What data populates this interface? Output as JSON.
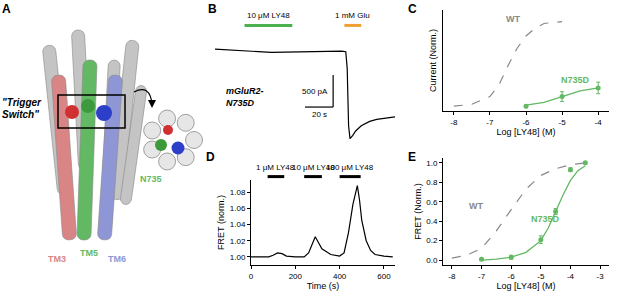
{
  "panel_a": {
    "panel_label": "A",
    "title_lines": [
      "\"Trigger",
      "Switch\""
    ],
    "helices": [
      {
        "name": "TM3",
        "color": "#d98585"
      },
      {
        "name": "TM5",
        "color": "#63b863"
      },
      {
        "name": "TM6",
        "color": "#8f96d6"
      }
    ],
    "residue": {
      "name": "N735",
      "color": "#63b863"
    }
  },
  "chart_data": [
    {
      "panel_label": "B",
      "type": "line",
      "tick_labels": false,
      "xlim": [
        0,
        128
      ],
      "ylim": [
        -1500,
        300
      ],
      "label_lines": [
        "mGluR2-",
        "N735D"
      ],
      "stimuli": [
        {
          "label": "10 μM LY48",
          "start": 21,
          "end": 55,
          "color": "#4caf50"
        },
        {
          "label": "1 mM Glu",
          "start": 92,
          "end": 104,
          "color": "#f0a030"
        }
      ],
      "scale_bars": {
        "x": 20,
        "y": 500,
        "x_label": "20 s",
        "y_label": "500 pA"
      },
      "series": [
        {
          "color": "#000000",
          "x": [
            0,
            10,
            20,
            30,
            40,
            50,
            60,
            70,
            80,
            90,
            93,
            94,
            95,
            96,
            98,
            100,
            104,
            110,
            115,
            120,
            128
          ],
          "values": [
            0,
            -10,
            -20,
            -40,
            -50,
            -45,
            -40,
            -35,
            -30,
            -30,
            -40,
            -300,
            -1200,
            -1400,
            -1350,
            -1280,
            -1200,
            -1130,
            -1100,
            -1080,
            -1060
          ]
        }
      ]
    },
    {
      "panel_label": "C",
      "type": "line",
      "tick_labels": "x",
      "x_label": "Log [LY48] (M)",
      "y_label": "Current (Norm.)",
      "xlim": [
        -8.3,
        -3.7
      ],
      "xticks": [
        -8,
        -7,
        -6,
        -5,
        -4
      ],
      "ylim": [
        -0.05,
        1
      ],
      "series": [
        {
          "name": "WT",
          "color": "#888888",
          "line_style": "dashed",
          "x": [
            -8,
            -7.5,
            -7,
            -6.75,
            -6.5,
            -6.25,
            -6,
            -5.75,
            -5.5,
            -5
          ],
          "values": [
            0,
            0.02,
            0.1,
            0.22,
            0.42,
            0.6,
            0.73,
            0.81,
            0.86,
            0.88
          ]
        },
        {
          "name": "N735D",
          "color": "#63b863",
          "marker": "circle",
          "x": [
            -6,
            -5,
            -4
          ],
          "values": [
            0,
            0.1,
            0.19
          ],
          "errors": [
            0.01,
            0.05,
            0.06
          ],
          "fit_x": [
            -6,
            -5.5,
            -5,
            -4.5,
            -4
          ],
          "fit_values": [
            0.01,
            0.04,
            0.1,
            0.16,
            0.19
          ]
        }
      ]
    },
    {
      "panel_label": "D",
      "type": "line",
      "color": "#000000",
      "x_label": "Time (s)",
      "y_label": "FRET (norm.)",
      "xlim": [
        0,
        650
      ],
      "xticks": [
        0,
        200,
        400,
        600
      ],
      "ylim": [
        0.99,
        1.095
      ],
      "yticks": [
        {
          "value": 1,
          "label": "1.00"
        },
        {
          "value": 1.02,
          "label": "1.02"
        },
        {
          "value": 1.04,
          "label": "1.04"
        },
        {
          "value": 1.06,
          "label": "1.06"
        },
        {
          "value": 1.08,
          "label": "1.08"
        }
      ],
      "stimuli": [
        {
          "label": "1 μM LY48",
          "start": 75,
          "end": 150
        },
        {
          "label": "10 μM LY48",
          "start": 240,
          "end": 320
        },
        {
          "label": "100 μM LY48",
          "start": 400,
          "end": 495
        }
      ],
      "series": [
        {
          "color": "#000000",
          "x": [
            0,
            40,
            80,
            100,
            120,
            140,
            160,
            200,
            240,
            260,
            280,
            290,
            300,
            320,
            360,
            400,
            420,
            440,
            460,
            475,
            480,
            490,
            500,
            520,
            540,
            560,
            600,
            640
          ],
          "values": [
            1.0,
            1.0,
            1.0,
            1.002,
            1.005,
            1.004,
            1.001,
            1.0,
            1.0,
            1.005,
            1.018,
            1.025,
            1.02,
            1.01,
            1.003,
            1.001,
            1.005,
            1.03,
            1.065,
            1.085,
            1.088,
            1.07,
            1.045,
            1.02,
            1.008,
            1.003,
            1.001,
            1.0
          ]
        }
      ]
    },
    {
      "panel_label": "E",
      "type": "line",
      "x_label": "Log [LY48] (M)",
      "y_label": "FRET (Norm.)",
      "xlim": [
        -8.3,
        -2.7
      ],
      "xticks": [
        -8,
        -7,
        -6,
        -5,
        -4,
        -3
      ],
      "ylim": [
        -0.05,
        1.05
      ],
      "yticks": [
        {
          "value": 0,
          "label": "0.0"
        },
        {
          "value": 0.2,
          "label": "0.2"
        },
        {
          "value": 0.4,
          "label": "0.4"
        },
        {
          "value": 0.6,
          "label": "0.6"
        },
        {
          "value": 0.8,
          "label": "0.8"
        },
        {
          "value": 1,
          "label": "1.0"
        }
      ],
      "series": [
        {
          "name": "WT",
          "color": "#888888",
          "line_style": "dashed",
          "x": [
            -8,
            -7.5,
            -7,
            -6.5,
            -6,
            -5.5,
            -5,
            -4.5,
            -4,
            -3.5
          ],
          "values": [
            0.02,
            0.05,
            0.12,
            0.3,
            0.52,
            0.73,
            0.87,
            0.94,
            0.98,
            1.0
          ]
        },
        {
          "name": "N735D",
          "color": "#63b863",
          "marker": "circle",
          "x": [
            -7,
            -6,
            -5,
            -4.5,
            -4,
            -3.5
          ],
          "values": [
            0.01,
            0.03,
            0.21,
            0.5,
            0.93,
            1.0
          ],
          "errors": [
            0.01,
            0.02,
            0.04,
            0.03,
            0.02,
            0.01
          ],
          "fit_x": [
            -7,
            -6.5,
            -6,
            -5.5,
            -5,
            -4.75,
            -4.5,
            -4.25,
            -4,
            -3.75,
            -3.5
          ],
          "fit_values": [
            0,
            0.01,
            0.03,
            0.08,
            0.2,
            0.33,
            0.5,
            0.67,
            0.82,
            0.92,
            0.97
          ]
        }
      ]
    }
  ]
}
